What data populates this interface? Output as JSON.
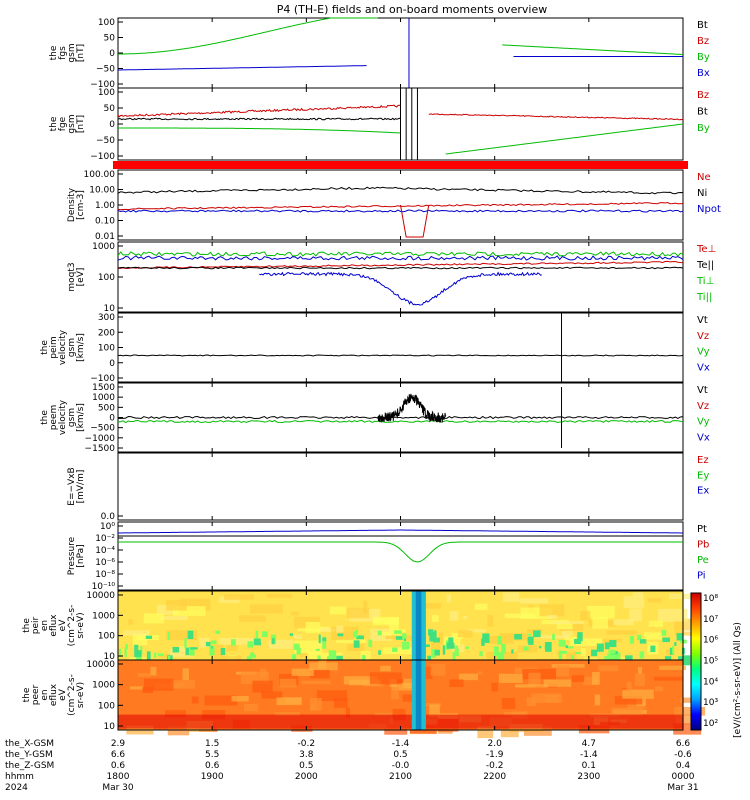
{
  "chart_data": {
    "type": "line",
    "title": "P4 (TH-E) fields and on-board moments overview",
    "time_ticks": [
      "1800",
      "1900",
      "2000",
      "2100",
      "2200",
      "2300",
      "0000"
    ],
    "date_labels": {
      "start_year": "2024",
      "start_date": "Mar 30",
      "end_date": "Mar 31"
    },
    "ephemeris": {
      "labels": [
        "the_X-GSM",
        "the_Y-GSM",
        "the_Z-GSM",
        "hhmm"
      ],
      "x_gsm": [
        "2.9",
        "1.5",
        "-0.2",
        "-1.4",
        "2.0",
        "4.7",
        "6.6"
      ],
      "y_gsm": [
        "6.6",
        "5.5",
        "3.8",
        "0.5",
        "-1.9",
        "-1.4",
        "-0.6"
      ],
      "z_gsm": [
        "0.6",
        "0.6",
        "0.5",
        "-0.0",
        "-0.2",
        "0.1",
        "0.4"
      ]
    },
    "panels": [
      {
        "id": "fgs",
        "ylabel": [
          "the",
          "fgs",
          "gsm",
          "[nT]"
        ],
        "yticks": [
          "100",
          "50",
          "0",
          "−50",
          "−100"
        ],
        "ylim": [
          -100,
          100
        ],
        "legend": [
          {
            "name": "Bt",
            "color": "#000000"
          },
          {
            "name": "Bz",
            "color": "#cc0000"
          },
          {
            "name": "By",
            "color": "#00bb00"
          },
          {
            "name": "Bx",
            "color": "#0000cc"
          }
        ]
      },
      {
        "id": "fge",
        "ylabel": [
          "the",
          "fge",
          "gsm",
          "[nT]"
        ],
        "yticks": [
          "100",
          "50",
          "0",
          "−50",
          "−100"
        ],
        "ylim": [
          -100,
          100
        ],
        "legend": [
          {
            "name": "Bz",
            "color": "#cc0000"
          },
          {
            "name": "Bt",
            "color": "#000000"
          },
          {
            "name": "By",
            "color": "#00bb00"
          }
        ]
      },
      {
        "id": "density",
        "ylabel": [
          "Density",
          "[cm-3]"
        ],
        "yticks": [
          "100.00",
          "10.00",
          "1.00",
          "0.10",
          "0.01"
        ],
        "log": true,
        "legend": [
          {
            "name": "Ne",
            "color": "#cc0000"
          },
          {
            "name": "Ni",
            "color": "#000000"
          },
          {
            "name": "Npot",
            "color": "#0000cc"
          }
        ]
      },
      {
        "id": "temp",
        "ylabel": [
          "moqt3",
          "[eV]"
        ],
        "yticks": [
          "1000",
          "100",
          "10"
        ],
        "log": true,
        "legend": [
          {
            "name": "Te⊥",
            "color": "#cc0000"
          },
          {
            "name": "Te||",
            "color": "#000000"
          },
          {
            "name": "Ti⊥",
            "color": "#00bb00"
          },
          {
            "name": "Ti||",
            "color": "#00bb00"
          }
        ]
      },
      {
        "id": "peim",
        "ylabel": [
          "the",
          "peim",
          "velocity",
          "gsm",
          "[km/s]"
        ],
        "yticks": [
          "300",
          "200",
          "100",
          "0",
          "−100"
        ],
        "ylim": [
          -150,
          350
        ],
        "legend": [
          {
            "name": "Vt",
            "color": "#000000"
          },
          {
            "name": "Vz",
            "color": "#cc0000"
          },
          {
            "name": "Vy",
            "color": "#00bb00"
          },
          {
            "name": "Vx",
            "color": "#0000cc"
          }
        ]
      },
      {
        "id": "peem",
        "ylabel": [
          "the",
          "peem",
          "velocity",
          "gsm",
          "[km/s]"
        ],
        "yticks": [
          "1500",
          "1000",
          "500",
          "0",
          "−500",
          "−1000",
          "−1500"
        ],
        "ylim": [
          -1500,
          1500
        ],
        "legend": [
          {
            "name": "Vt",
            "color": "#000000"
          },
          {
            "name": "Vz",
            "color": "#cc0000"
          },
          {
            "name": "Vy",
            "color": "#00bb00"
          },
          {
            "name": "Vx",
            "color": "#0000cc"
          }
        ]
      },
      {
        "id": "efield",
        "ylabel": [
          "E=−VxB",
          "[mV/m]"
        ],
        "yticks": [
          "0.0"
        ],
        "legend": [
          {
            "name": "Ez",
            "color": "#cc0000"
          },
          {
            "name": "Ey",
            "color": "#00bb00"
          },
          {
            "name": "Ex",
            "color": "#0000cc"
          }
        ]
      },
      {
        "id": "pressure",
        "ylabel": [
          "Pressure",
          "[nPa]"
        ],
        "yticks": [
          "10⁰",
          "10⁻²",
          "10⁻⁴",
          "10⁻⁶",
          "10⁻⁸",
          "10⁻¹⁰"
        ],
        "log": true,
        "legend": [
          {
            "name": "Pt",
            "color": "#000000"
          },
          {
            "name": "Pb",
            "color": "#cc0000"
          },
          {
            "name": "Pe",
            "color": "#00bb00"
          },
          {
            "name": "Pi",
            "color": "#0000cc"
          }
        ]
      },
      {
        "id": "peir",
        "ylabel": [
          "the",
          "peir",
          "en",
          "eflux",
          "eV",
          "(cm^2-s-",
          "sr-eV)"
        ],
        "yticks": [
          "10000",
          "1000",
          "100",
          "10"
        ],
        "type": "heatmap"
      },
      {
        "id": "peer",
        "ylabel": [
          "the",
          "peer",
          "en",
          "eflux",
          "eV",
          "(cm^2-s-",
          "sr-eV)"
        ],
        "yticks": [
          "10000",
          "1000",
          "100",
          "10"
        ],
        "type": "heatmap"
      }
    ],
    "colorbar": {
      "ticks": [
        "10⁸",
        "10⁷",
        "10⁶",
        "10⁵",
        "10⁴",
        "10³",
        "10²"
      ],
      "label": "[eV/(cm²-s-sr-eV)] (All Qs)",
      "colors": [
        "#000080",
        "#0000ff",
        "#00a0ff",
        "#00ffff",
        "#00ff80",
        "#80ff00",
        "#ffff00",
        "#ffa000",
        "#ff4000",
        "#cc0000"
      ]
    }
  }
}
